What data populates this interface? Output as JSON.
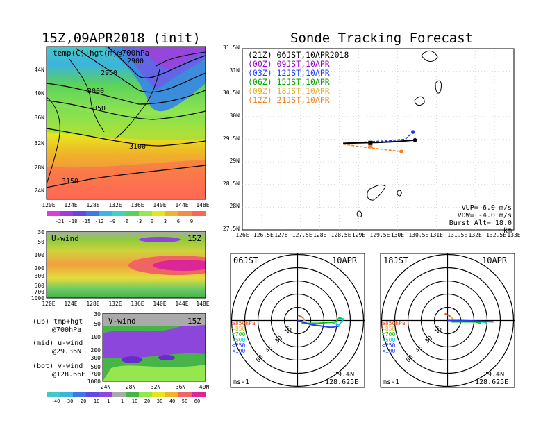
{
  "left_title": "15Z,09APR2018 (init)",
  "right_title": "Sonde Tracking Forecast",
  "map_panel": {
    "label": "temp(C)+hgt(m)@700hPa",
    "height_contours": [
      "2900",
      "2950",
      "3000",
      "3050",
      "3100",
      "3150"
    ],
    "lat_labels": [
      "44N",
      "40N",
      "36N",
      "32N",
      "28N",
      "24N"
    ],
    "lon_labels": [
      "120E",
      "124E",
      "128E",
      "132E",
      "136E",
      "140E",
      "144E",
      "148E"
    ]
  },
  "temp_colorbar": {
    "labels": [
      "-21",
      "-18",
      "-15",
      "-12",
      "-9",
      "-6",
      "-3",
      "0",
      "3",
      "6",
      "9"
    ]
  },
  "uwind_panel": {
    "label": "U-wind",
    "time": "15Z",
    "y_labels": [
      "30",
      "50",
      "100",
      "200",
      "300",
      "500",
      "700",
      "1000"
    ],
    "x_labels": [
      "120E",
      "124E",
      "128E",
      "132E",
      "136E",
      "140E",
      "144E",
      "148E"
    ]
  },
  "vwind_panel": {
    "label": "V-wind",
    "time": "15Z",
    "y_labels": [
      "30",
      "50",
      "100",
      "200",
      "300",
      "500",
      "700",
      "1000"
    ],
    "x_labels": [
      "24N",
      "28N",
      "32N",
      "36N",
      "40N"
    ]
  },
  "panel_descriptions": {
    "up1": "(up) tmp+hgt",
    "up2": "@700hPa",
    "mid1": "(mid) u-wind",
    "mid2": "@29.36N",
    "bot1": "(bot) v-wind",
    "bot2": "@128.66E"
  },
  "wind_colorbar": {
    "labels": [
      "-40",
      "-30",
      "-20",
      "-10",
      "-1",
      "1",
      "10",
      "20",
      "30",
      "40",
      "50",
      "60"
    ]
  },
  "tracking": {
    "legend": [
      {
        "text": "(21Z) 06JST,10APR2018",
        "color": "#000000"
      },
      {
        "text": "(00Z) 09JST,10APR",
        "color": "#a000c8"
      },
      {
        "text": "(03Z) 12JST,10APR",
        "color": "#1e3cff"
      },
      {
        "text": "(06Z) 15JST,10APR",
        "color": "#00a000"
      },
      {
        "text": "(09Z) 18JST,10APR",
        "color": "#e6af2d"
      },
      {
        "text": "(12Z) 21JST,10APR",
        "color": "#f08228"
      }
    ],
    "lat_labels": [
      "31.5N",
      "31N",
      "30.5N",
      "30N",
      "29.5N",
      "29N",
      "28.5N",
      "28N",
      "27.5N"
    ],
    "lon_labels": [
      "126E",
      "126.5E",
      "127E",
      "127.5E",
      "128E",
      "128.5E",
      "129E",
      "129.5E",
      "130E",
      "130.5E",
      "131E",
      "131.5E",
      "132E",
      "132.5E",
      "133E"
    ],
    "params": {
      "vup": "VUP= 6.0 m/s",
      "vdw": "VDW= -4.0 m/s",
      "burst": "Burst Alt= 18.0 km"
    }
  },
  "hodo_left": {
    "time": "06JST",
    "date": "10APR",
    "lat": "29.4N",
    "lon": "128.625E",
    "unit": "ms-1",
    "ring_labels": [
      "15",
      "30",
      "45",
      "60"
    ],
    "levels": [
      "≥850hPa",
      "<850",
      "<700",
      "<500",
      "<250",
      "<100"
    ]
  },
  "hodo_right": {
    "time": "18JST",
    "date": "10APR",
    "lat": "29.4N",
    "lon": "128.625E",
    "unit": "ms-1",
    "ring_labels": [
      "15",
      "30",
      "45",
      "60"
    ],
    "levels": [
      "≥850hPa",
      "<850",
      "<700",
      "<500",
      "<250",
      "<100"
    ]
  },
  "level_colors": [
    "#f05028",
    "#e6af2d",
    "#00c800",
    "#00d2d2",
    "#1e3cff",
    "#1e3cff"
  ],
  "chart_data": {
    "type": "line",
    "title": "Sonde Tracking Forecast",
    "xlim": [
      126,
      133
    ],
    "ylim": [
      27.5,
      31.5
    ],
    "series": [
      {
        "name": "(21Z) 06JST,10APR2018",
        "x": [
          128.6,
          129.0,
          129.5,
          130.0,
          130.45
        ],
        "y": [
          29.41,
          29.42,
          29.43,
          29.45,
          29.48
        ]
      },
      {
        "name": "(00Z) 09JST,10APR",
        "x": [
          128.6,
          129.0,
          129.5,
          130.0,
          130.45
        ],
        "y": [
          29.41,
          29.42,
          29.43,
          29.45,
          29.48
        ]
      },
      {
        "name": "(03Z) 12JST,10APR",
        "x": [
          128.6,
          129.2,
          129.8,
          130.2,
          130.4
        ],
        "y": [
          29.41,
          29.44,
          29.47,
          29.5,
          29.66
        ]
      },
      {
        "name": "(06Z) 15JST,10APR",
        "x": [
          128.6,
          129.0,
          129.5,
          130.0,
          130.45
        ],
        "y": [
          29.41,
          29.42,
          29.43,
          29.45,
          29.48
        ]
      },
      {
        "name": "(09Z) 18JST,10APR",
        "x": [
          128.6,
          129.0,
          129.5,
          130.0,
          130.45
        ],
        "y": [
          29.41,
          29.42,
          29.43,
          29.45,
          29.48
        ]
      },
      {
        "name": "(12Z) 21JST,10APR",
        "x": [
          128.6,
          129.1,
          129.6,
          130.1
        ],
        "y": [
          29.39,
          29.33,
          29.28,
          29.23
        ]
      }
    ]
  }
}
